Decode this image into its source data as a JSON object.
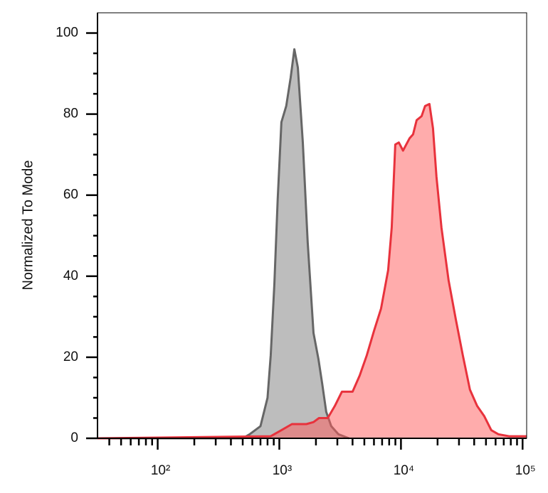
{
  "chart_data": {
    "type": "area",
    "ylabel": "Normalized To Mode",
    "xscale": "log",
    "xlim": [
      32,
      108000
    ],
    "xticks": [
      {
        "value": 100,
        "label": "10²"
      },
      {
        "value": 1000,
        "label": "10³"
      },
      {
        "value": 10000,
        "label": "10⁴"
      },
      {
        "value": 100000,
        "label": "10⁵"
      }
    ],
    "xminor_ticks": [
      40,
      50,
      60,
      70,
      80,
      90,
      200,
      300,
      400,
      500,
      600,
      700,
      800,
      900,
      2000,
      3000,
      4000,
      5000,
      6000,
      7000,
      8000,
      9000,
      20000,
      30000,
      40000,
      50000,
      60000,
      70000,
      80000,
      90000
    ],
    "ylim": [
      0,
      105
    ],
    "yticks": [
      0,
      20,
      40,
      60,
      80,
      100
    ],
    "yminor_ticks": [
      5,
      10,
      15,
      25,
      30,
      35,
      45,
      50,
      55,
      65,
      70,
      75,
      85,
      90,
      95
    ],
    "series": [
      {
        "color": "#666666",
        "fill": "#bdbdbd",
        "x": [
          32,
          500,
          570,
          700,
          800,
          850,
          910,
          970,
          1040,
          1140,
          1240,
          1330,
          1420,
          1560,
          1710,
          1910,
          2100,
          2250,
          2430,
          2670,
          3060,
          3740
        ],
        "values": [
          0,
          0,
          1,
          3,
          10,
          20.5,
          38,
          59,
          78,
          82,
          89,
          96,
          91.5,
          73,
          48.5,
          26,
          19.5,
          13.5,
          6.5,
          3,
          1,
          0
        ]
      },
      {
        "color": "#e8323c",
        "fill": "#ff5a5a",
        "x": [
          32,
          850,
          1040,
          1270,
          1670,
          1910,
          2120,
          2500,
          2860,
          3270,
          4000,
          4580,
          5240,
          6000,
          6860,
          7850,
          8400,
          8980,
          9600,
          10400,
          11760,
          12570,
          13450,
          14790,
          15800,
          17140,
          18340,
          19600,
          21530,
          24640,
          28200,
          32260,
          36900,
          42260,
          48300,
          55300,
          63300,
          77400,
          108000
        ],
        "values": [
          0,
          0.5,
          2,
          3.5,
          3.5,
          4,
          5,
          5,
          8,
          11.5,
          11.5,
          15.5,
          20.5,
          26.5,
          32,
          41.5,
          52,
          72.5,
          73,
          71,
          74,
          75,
          78.5,
          79.5,
          82,
          82.5,
          76.5,
          64.5,
          52,
          39,
          29.5,
          20.5,
          12,
          8,
          5.5,
          2,
          1,
          0.5,
          0.5
        ]
      }
    ]
  }
}
